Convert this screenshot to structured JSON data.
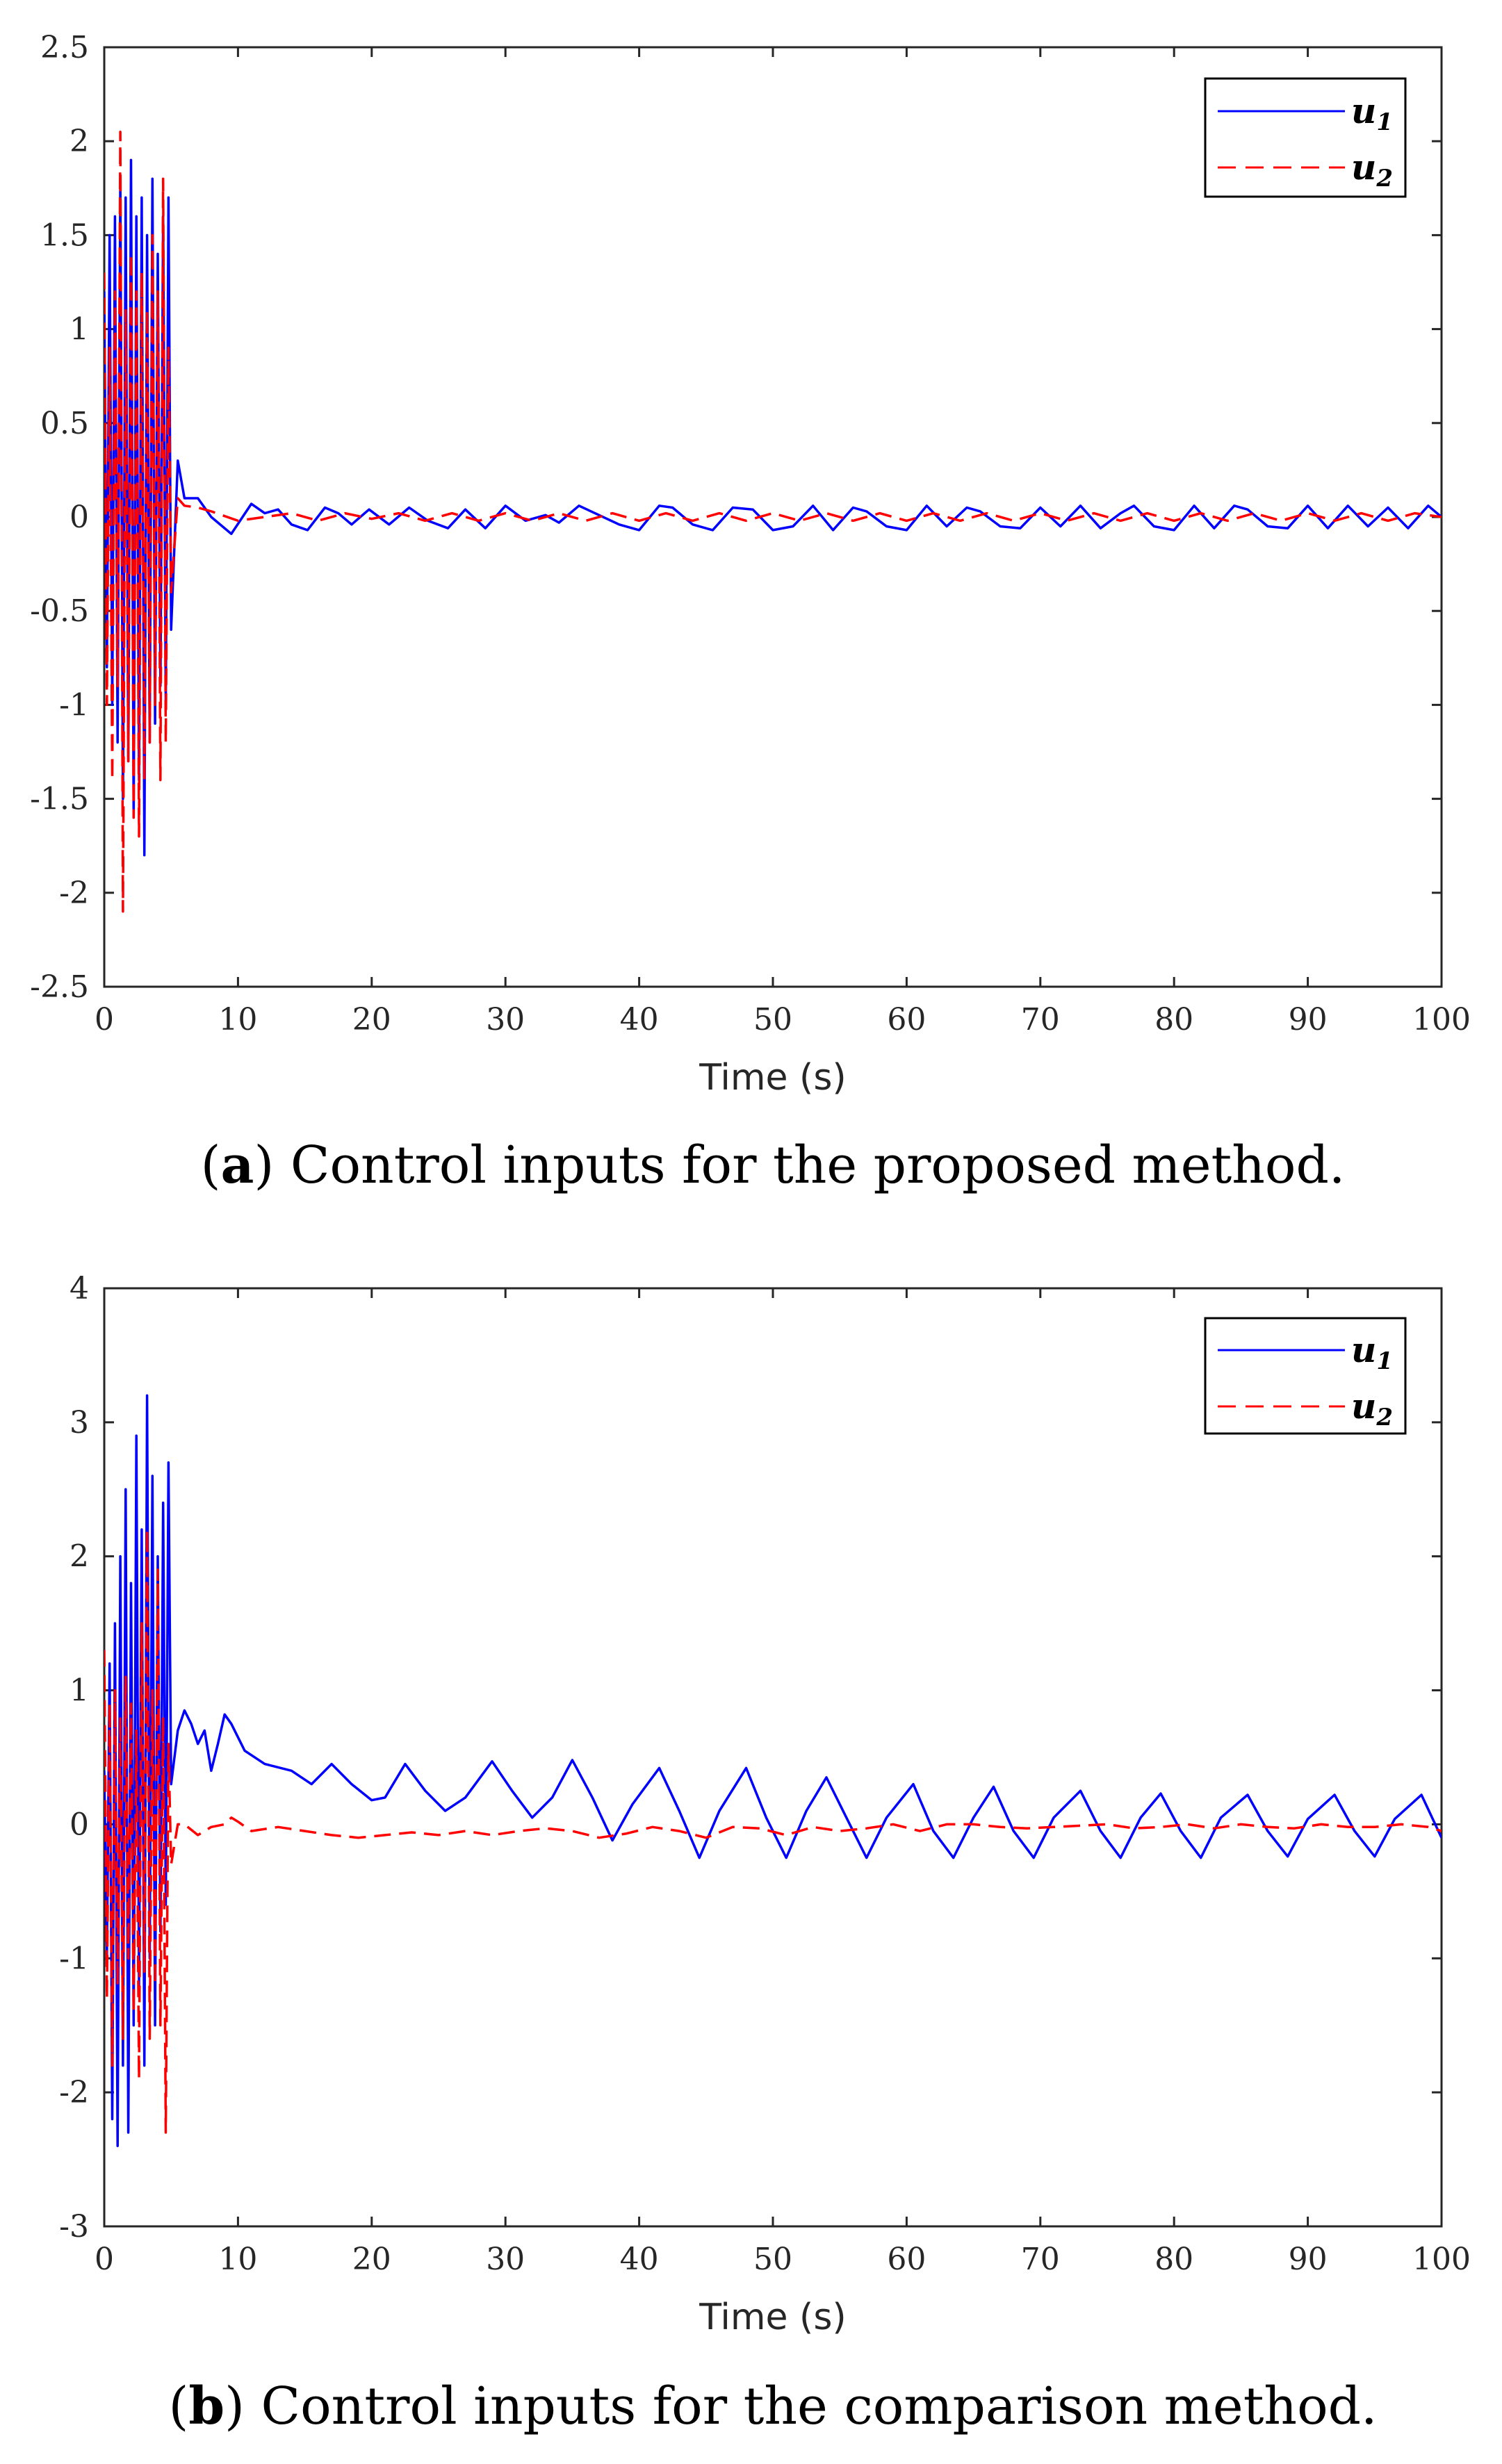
{
  "chart_data": [
    {
      "type": "line",
      "panel": "a",
      "caption_letter": "a",
      "caption": "Control inputs for the proposed method.",
      "xlabel": "Time (s)",
      "ylabel": "",
      "xlim": [
        0,
        100
      ],
      "ylim": [
        -2.5,
        2.5
      ],
      "x_ticks": [
        0,
        10,
        20,
        30,
        40,
        50,
        60,
        70,
        80,
        90,
        100
      ],
      "x_tick_labels": [
        "0",
        "10",
        "20",
        "30",
        "40",
        "50",
        "60",
        "70",
        "80",
        "90",
        "100"
      ],
      "y_ticks": [
        2.5,
        2,
        1.5,
        1,
        0.5,
        0,
        -0.5,
        -1,
        -1.5,
        -2,
        -2.5
      ],
      "y_tick_labels": [
        "2.5",
        "2",
        "1.5",
        "1",
        "0.5",
        "0",
        "-0.5",
        "-1",
        "-1.5",
        "-2",
        "-2.5"
      ],
      "legend": {
        "position": "top-right",
        "entries": [
          {
            "symbol": "u",
            "subscript": "1"
          },
          {
            "symbol": "u",
            "subscript": "2"
          }
        ]
      },
      "series": [
        {
          "name": "u1",
          "color": "#0000ff",
          "style": "solid",
          "x": [
            0,
            0.2,
            0.4,
            0.6,
            0.8,
            1.0,
            1.2,
            1.4,
            1.6,
            1.8,
            2.0,
            2.2,
            2.4,
            2.6,
            2.8,
            3.0,
            3.2,
            3.4,
            3.6,
            3.8,
            4.0,
            4.2,
            4.4,
            4.6,
            4.8,
            5.0,
            5.5,
            6.0,
            7,
            8,
            9.5,
            11,
            12,
            13,
            14,
            15.2,
            16.5,
            17.5,
            18.5,
            19.8,
            21.3,
            22.8,
            24.2,
            25.7,
            27,
            28.5,
            30,
            31.5,
            33,
            34,
            35.5,
            37,
            38.5,
            40,
            41.5,
            42.5,
            44,
            45.5,
            47,
            48.5,
            50,
            51.5,
            53,
            54.5,
            56,
            57,
            58.5,
            60,
            61.5,
            63,
            64.5,
            65.5,
            67,
            68.5,
            70,
            71.5,
            73,
            74.5,
            76,
            77,
            78.5,
            80,
            81.5,
            83,
            84.5,
            85.5,
            87,
            88.5,
            90,
            91.5,
            93,
            94.5,
            96,
            97.5,
            99,
            100
          ],
          "values": [
            1.2,
            -0.8,
            1.5,
            -1.0,
            1.6,
            -1.2,
            1.8,
            -1.5,
            1.7,
            -1.3,
            1.9,
            -1.6,
            1.6,
            -1.4,
            1.7,
            -1.8,
            1.5,
            -1.2,
            1.8,
            -1.1,
            1.4,
            -0.9,
            1.6,
            -1.0,
            1.7,
            -0.6,
            0.3,
            0.1,
            0.1,
            0.0,
            -0.09,
            0.07,
            0.02,
            0.04,
            -0.04,
            -0.07,
            0.05,
            0.02,
            -0.04,
            0.04,
            -0.04,
            0.05,
            -0.02,
            -0.06,
            0.04,
            -0.06,
            0.06,
            -0.02,
            0.01,
            -0.03,
            0.06,
            0.01,
            -0.04,
            -0.07,
            0.06,
            0.05,
            -0.04,
            -0.07,
            0.05,
            0.04,
            -0.07,
            -0.05,
            0.06,
            -0.07,
            0.05,
            0.03,
            -0.05,
            -0.07,
            0.06,
            -0.05,
            0.05,
            0.03,
            -0.05,
            -0.06,
            0.05,
            -0.05,
            0.06,
            -0.06,
            0.02,
            0.06,
            -0.05,
            -0.07,
            0.06,
            -0.06,
            0.06,
            0.04,
            -0.05,
            -0.06,
            0.06,
            -0.06,
            0.06,
            -0.05,
            0.05,
            -0.06,
            0.06,
            0.0
          ]
        },
        {
          "name": "u2",
          "color": "#ff0000",
          "style": "dashed",
          "x": [
            0,
            0.2,
            0.4,
            0.6,
            0.8,
            1.0,
            1.2,
            1.4,
            1.6,
            1.8,
            2.0,
            2.2,
            2.4,
            2.6,
            2.8,
            3.0,
            3.2,
            3.4,
            3.6,
            3.8,
            4.0,
            4.2,
            4.4,
            4.6,
            4.8,
            5.0,
            5.5,
            6.0,
            7,
            8,
            10,
            12,
            14,
            16,
            18,
            20,
            22,
            24,
            26,
            28,
            30,
            32,
            34,
            36,
            38,
            40,
            42,
            44,
            46,
            48,
            50,
            52,
            54,
            56,
            58,
            60,
            62,
            64,
            66,
            68,
            70,
            72,
            74,
            76,
            78,
            80,
            82,
            84,
            86,
            88,
            90,
            92,
            94,
            96,
            98,
            100
          ],
          "values": [
            1.3,
            -1.0,
            0.9,
            -1.4,
            1.2,
            -0.9,
            2.05,
            -2.1,
            1.1,
            -1.3,
            1.4,
            -1.6,
            1.2,
            -1.7,
            1.3,
            -1.4,
            1.1,
            -1.2,
            1.5,
            -1.0,
            1.2,
            -1.4,
            1.8,
            -1.2,
            0.9,
            -0.4,
            0.1,
            0.06,
            0.05,
            0.03,
            -0.02,
            0.0,
            0.02,
            -0.02,
            0.02,
            -0.01,
            0.02,
            -0.02,
            0.02,
            -0.02,
            0.02,
            -0.02,
            0.02,
            -0.02,
            0.02,
            -0.02,
            0.02,
            -0.02,
            0.02,
            -0.02,
            0.02,
            -0.02,
            0.02,
            -0.02,
            0.02,
            -0.02,
            0.02,
            -0.02,
            0.02,
            -0.02,
            0.02,
            -0.02,
            0.02,
            -0.02,
            0.02,
            -0.02,
            0.02,
            -0.02,
            0.02,
            -0.02,
            0.02,
            -0.02,
            0.02,
            -0.02,
            0.02,
            0.0
          ]
        }
      ]
    },
    {
      "type": "line",
      "panel": "b",
      "caption_letter": "b",
      "caption": "Control inputs for the comparison method.",
      "xlabel": "Time (s)",
      "ylabel": "",
      "xlim": [
        0,
        100
      ],
      "ylim": [
        -3,
        4
      ],
      "x_ticks": [
        0,
        10,
        20,
        30,
        40,
        50,
        60,
        70,
        80,
        90,
        100
      ],
      "x_tick_labels": [
        "0",
        "10",
        "20",
        "30",
        "40",
        "50",
        "60",
        "70",
        "80",
        "90",
        "100"
      ],
      "y_ticks": [
        4,
        3,
        2,
        1,
        0,
        -1,
        -2,
        -3
      ],
      "y_tick_labels": [
        "4",
        "3",
        "2",
        "1",
        "0",
        "-1",
        "-2",
        "-3"
      ],
      "legend": {
        "position": "top-right",
        "entries": [
          {
            "symbol": "u",
            "subscript": "1"
          },
          {
            "symbol": "u",
            "subscript": "2"
          }
        ]
      },
      "series": [
        {
          "name": "u1",
          "color": "#0000ff",
          "style": "solid",
          "x": [
            0,
            0.2,
            0.4,
            0.6,
            0.8,
            1.0,
            1.2,
            1.4,
            1.6,
            1.8,
            2.0,
            2.2,
            2.4,
            2.6,
            2.8,
            3.0,
            3.2,
            3.4,
            3.6,
            3.8,
            4.0,
            4.2,
            4.4,
            4.6,
            4.8,
            5.0,
            5.5,
            6.0,
            6.5,
            7.0,
            7.5,
            8.0,
            8.5,
            9.0,
            9.5,
            10.5,
            12,
            14,
            15.5,
            17,
            18.5,
            20,
            21,
            22.5,
            24,
            25.5,
            27,
            29,
            30.5,
            32,
            33.5,
            35,
            36.5,
            38,
            39.5,
            41.5,
            43,
            44.5,
            46,
            48,
            49.5,
            51,
            52.5,
            54,
            55.5,
            57,
            58.5,
            60.5,
            62,
            63.5,
            65,
            66.5,
            68,
            69.5,
            71,
            73,
            74.5,
            76,
            77.5,
            79,
            80.5,
            82,
            83.5,
            85.5,
            87,
            88.5,
            90,
            92,
            93.5,
            95,
            96.5,
            98.5,
            100
          ],
          "values": [
            0.4,
            -1.0,
            1.2,
            -2.2,
            1.5,
            -2.4,
            2.0,
            -1.8,
            2.5,
            -2.3,
            1.8,
            -1.5,
            2.9,
            -1.2,
            2.2,
            -1.8,
            3.2,
            -1.0,
            2.6,
            -1.5,
            2.0,
            -0.8,
            2.4,
            -0.6,
            2.7,
            0.3,
            0.7,
            0.85,
            0.75,
            0.6,
            0.7,
            0.4,
            0.6,
            0.82,
            0.75,
            0.55,
            0.45,
            0.4,
            0.3,
            0.45,
            0.3,
            0.18,
            0.2,
            0.45,
            0.25,
            0.1,
            0.2,
            0.47,
            0.25,
            0.05,
            0.2,
            0.48,
            0.2,
            -0.12,
            0.15,
            0.42,
            0.1,
            -0.25,
            0.1,
            0.42,
            0.05,
            -0.25,
            0.1,
            0.35,
            0.05,
            -0.25,
            0.05,
            0.3,
            -0.05,
            -0.25,
            0.05,
            0.28,
            -0.05,
            -0.25,
            0.05,
            0.25,
            -0.05,
            -0.25,
            0.05,
            0.23,
            -0.05,
            -0.25,
            0.05,
            0.22,
            -0.05,
            -0.24,
            0.04,
            0.22,
            -0.05,
            -0.24,
            0.04,
            0.22,
            -0.1
          ]
        },
        {
          "name": "u2",
          "color": "#ff0000",
          "style": "dashed",
          "x": [
            0,
            0.2,
            0.4,
            0.6,
            0.8,
            1.0,
            1.2,
            1.4,
            1.6,
            1.8,
            2.0,
            2.2,
            2.4,
            2.6,
            2.8,
            3.0,
            3.2,
            3.4,
            3.6,
            3.8,
            4.0,
            4.2,
            4.4,
            4.6,
            4.8,
            5.0,
            5.5,
            6.0,
            7,
            8,
            9,
            9.5,
            10,
            11,
            13,
            15,
            17,
            19,
            21,
            23,
            25,
            27,
            29,
            31,
            33,
            35,
            37,
            39,
            41,
            43,
            45,
            47,
            49,
            51,
            53,
            55,
            57,
            59,
            61,
            63,
            65,
            67,
            69,
            71,
            73,
            75,
            77,
            79,
            81,
            83,
            85,
            87,
            89,
            91,
            93,
            95,
            97,
            99,
            100
          ],
          "values": [
            1.3,
            -1.3,
            0.9,
            -1.8,
            1.0,
            -1.2,
            0.8,
            -1.6,
            1.1,
            -1.0,
            0.9,
            -1.4,
            0.7,
            -1.9,
            1.5,
            -1.1,
            2.2,
            -1.6,
            1.0,
            -1.2,
            1.9,
            -1.5,
            0.8,
            -2.3,
            0.6,
            -0.3,
            0.0,
            0.0,
            -0.08,
            -0.02,
            0.0,
            0.05,
            0.02,
            -0.05,
            -0.02,
            -0.05,
            -0.08,
            -0.1,
            -0.08,
            -0.06,
            -0.08,
            -0.05,
            -0.08,
            -0.05,
            -0.03,
            -0.05,
            -0.1,
            -0.07,
            -0.02,
            -0.05,
            -0.1,
            -0.02,
            -0.03,
            -0.08,
            -0.02,
            -0.05,
            -0.03,
            0.0,
            -0.05,
            0.0,
            0.0,
            -0.02,
            -0.03,
            -0.02,
            -0.01,
            0.0,
            -0.03,
            -0.02,
            0.0,
            -0.03,
            0.0,
            -0.02,
            -0.03,
            0.0,
            -0.02,
            -0.02,
            0.0,
            -0.02,
            -0.05
          ]
        }
      ]
    }
  ]
}
